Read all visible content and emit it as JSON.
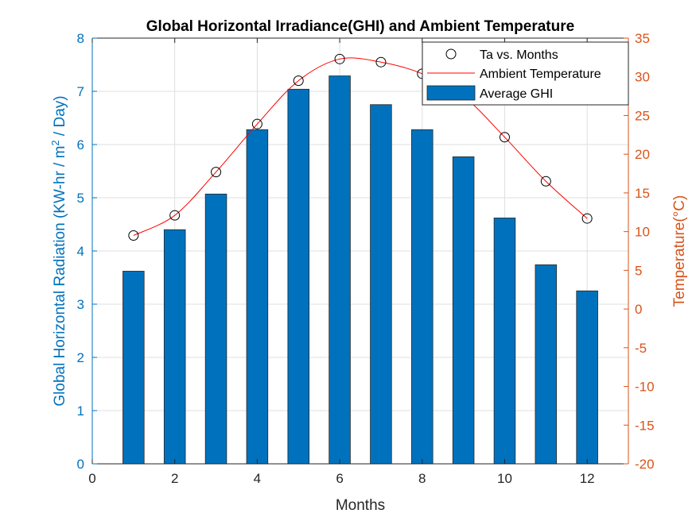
{
  "chart_data": {
    "type": "bar",
    "title": "Global Horizontal Irradiance(GHI) and Ambient Temperature",
    "xlabel": "Months",
    "ylabel_left_main": "Global Horizontal Radiation (KW-hr / m",
    "ylabel_left_sup": "2",
    "ylabel_left_tail": " / Day)",
    "ylabel_right": "Temperature(°C)",
    "xlim": [
      0,
      13
    ],
    "xticks": [
      0,
      2,
      4,
      6,
      8,
      10,
      12
    ],
    "ylim_left": [
      0,
      8
    ],
    "yticks_left": [
      0,
      1,
      2,
      3,
      4,
      5,
      6,
      7,
      8
    ],
    "ylim_right": [
      -20,
      35
    ],
    "yticks_right": [
      -20,
      -15,
      -10,
      -5,
      0,
      5,
      10,
      15,
      20,
      25,
      30,
      35
    ],
    "grid": true,
    "legend_position": "top-right",
    "series": [
      {
        "name": "Average GHI",
        "kind": "bar",
        "axis": "left",
        "color": "#0072BD",
        "x": [
          1,
          2,
          3,
          4,
          5,
          6,
          7,
          8,
          9,
          10,
          11,
          12
        ],
        "values": [
          3.62,
          4.4,
          5.07,
          6.28,
          7.04,
          7.29,
          6.75,
          6.28,
          5.77,
          4.62,
          3.74,
          3.25
        ]
      },
      {
        "name": "Ta vs. Months",
        "kind": "scatter",
        "axis": "right",
        "color": "#000000",
        "x": [
          1,
          2,
          3,
          4,
          5,
          6,
          7,
          8,
          9,
          10,
          11,
          12
        ],
        "values": [
          9.5,
          12.1,
          17.7,
          23.9,
          29.5,
          32.3,
          31.9,
          30.4,
          27.5,
          22.2,
          16.5,
          11.7
        ]
      },
      {
        "name": "Ambient Temperature",
        "kind": "line",
        "axis": "right",
        "color": "#FF0000",
        "x": [
          1,
          2,
          3,
          4,
          5,
          6,
          7,
          8,
          9,
          10,
          11,
          12
        ],
        "values": [
          9.5,
          12.1,
          17.7,
          23.9,
          29.5,
          32.3,
          31.9,
          30.4,
          27.5,
          22.2,
          16.5,
          11.7
        ]
      }
    ]
  }
}
